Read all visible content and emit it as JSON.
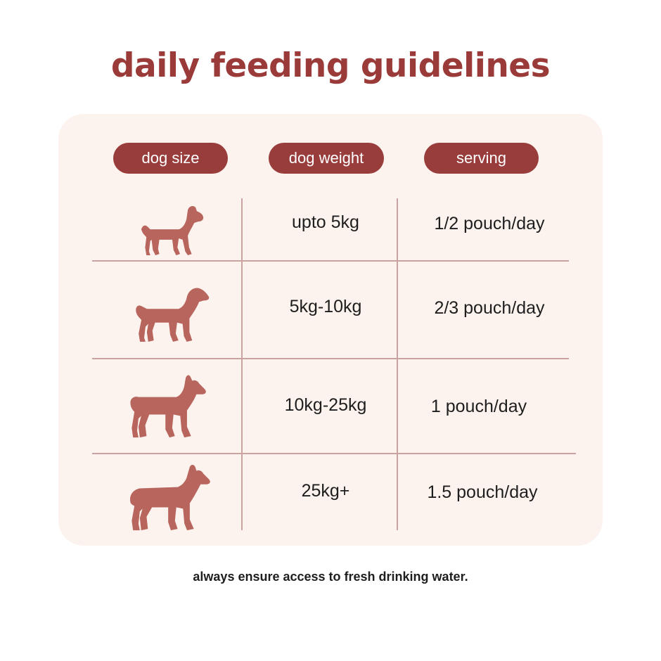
{
  "title": "daily feeding guidelines",
  "headers": {
    "size": "dog size",
    "weight": "dog weight",
    "serving": "serving"
  },
  "rows": [
    {
      "size_icon": "small-dog-icon",
      "weight": "upto 5kg",
      "serving": "1/2 pouch/day"
    },
    {
      "size_icon": "medium-dog-icon",
      "weight": "5kg-10kg",
      "serving": "2/3 pouch/day"
    },
    {
      "size_icon": "large-dog-icon",
      "weight": "10kg-25kg",
      "serving": "1 pouch/day"
    },
    {
      "size_icon": "extra-large-dog-icon",
      "weight": "25kg+",
      "serving": "1.5 pouch/day"
    }
  ],
  "footer": "always ensure access to fresh drinking water.",
  "colors": {
    "accent": "#9a3b3a",
    "card_bg": "#fdf3ee",
    "dog_icon": "#b8655d",
    "divider": "#c9a3a0"
  }
}
